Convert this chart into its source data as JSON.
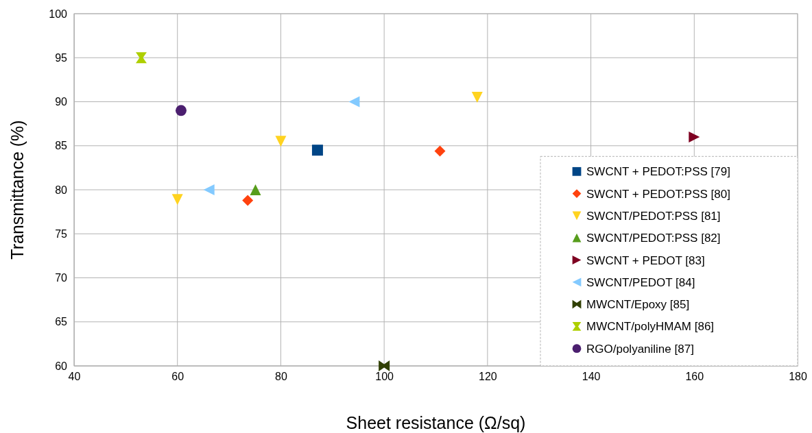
{
  "chart_data": {
    "type": "scatter",
    "xlabel": "Sheet resistance (Ω/sq)",
    "ylabel": "Transmittance (%)",
    "xlim": [
      40,
      180
    ],
    "xticks": [
      40,
      60,
      80,
      100,
      120,
      140,
      160,
      180
    ],
    "ylim": [
      60,
      100
    ],
    "yticks": [
      60,
      65,
      70,
      75,
      80,
      85,
      90,
      95,
      100
    ],
    "grid": true,
    "legend": "bottom right",
    "series": [
      {
        "name": "SWCNT + PEDOT:PSS [79]",
        "color": "#004586",
        "marker": "square",
        "x": [
          87.1
        ],
        "values": [
          84.5
        ]
      },
      {
        "name": "SWCNT + PEDOT:PSS [80]",
        "color": "#ff420e",
        "marker": "diamond",
        "x": [
          73.6,
          110.8
        ],
        "values": [
          78.8,
          84.4
        ]
      },
      {
        "name": "SWCNT/PEDOT:PSS [81]",
        "color": "#ffd320",
        "marker": "triangle-down",
        "x": [
          60,
          80,
          118
        ],
        "values": [
          78.9,
          85.5,
          90.5
        ]
      },
      {
        "name": "SWCNT/PEDOT:PSS [82]",
        "color": "#579d1c",
        "marker": "triangle",
        "x": [
          75.1
        ],
        "values": [
          80
        ]
      },
      {
        "name": "SWCNT + PEDOT [83]",
        "color": "#7e0021",
        "marker": "triangle-right",
        "x": [
          160
        ],
        "values": [
          86
        ]
      },
      {
        "name": "SWCNT/PEDOT [84]",
        "color": "#83caff",
        "marker": "triangle-left",
        "x": [
          66.1,
          94.2
        ],
        "values": [
          80,
          90
        ]
      },
      {
        "name": "MWCNT/Epoxy [85]",
        "color": "#314004",
        "x": [
          100
        ],
        "values": [
          60
        ]
      },
      {
        "name": "MWCNT/polyHMAM [86]",
        "color": "#aecf00",
        "x": [
          53
        ],
        "values": [
          95
        ]
      },
      {
        "name": "RGO/polyaniline [87]",
        "color": "#4b1f6f",
        "marker": "circle",
        "x": [
          60.7
        ],
        "values": [
          89
        ]
      }
    ]
  }
}
